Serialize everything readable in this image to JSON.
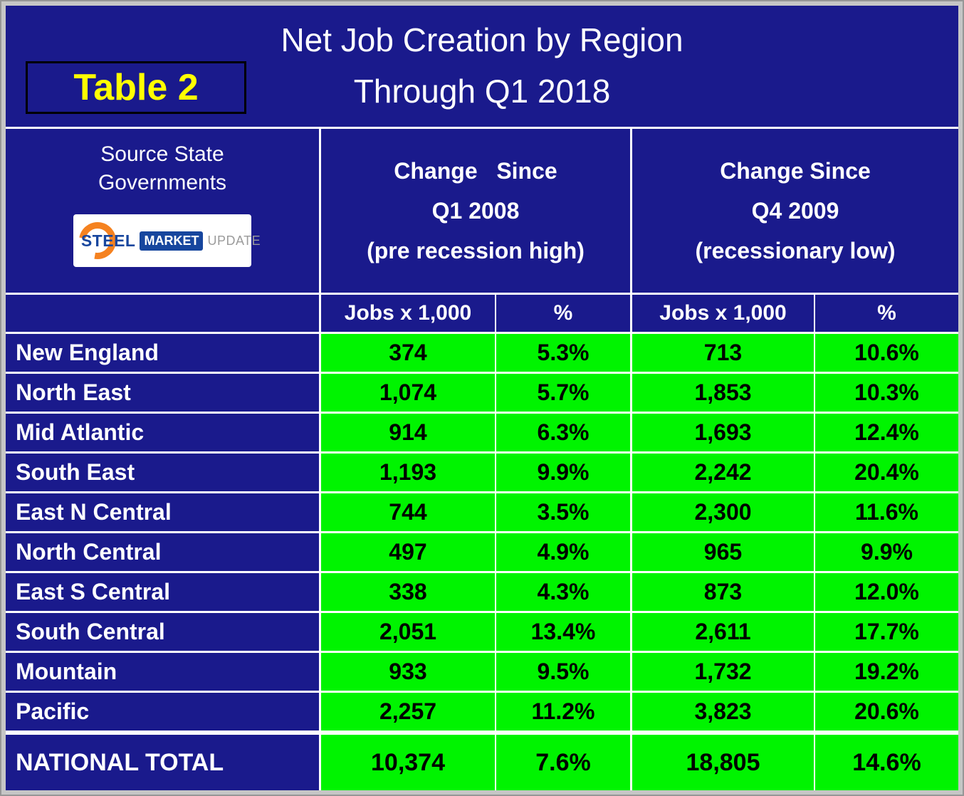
{
  "title": {
    "table_label": "Table 2",
    "text": "Net Job Creation by Region\nThrough Q1 2018"
  },
  "source": {
    "text": "Source State\nGovernments",
    "logo": {
      "steel": "STEEL",
      "market": "MARKET",
      "update": "UPDATE"
    }
  },
  "columns": {
    "group1": "Change   Since\nQ1 2008\n(pre recession high)",
    "group2": "Change Since\nQ4 2009\n(recessionary low)",
    "sub": [
      "Jobs x 1,000",
      "%",
      "Jobs x 1,000",
      "%"
    ]
  },
  "rows": [
    {
      "region": "New England",
      "jobs1": "374",
      "pct1": "5.3%",
      "jobs2": "713",
      "pct2": "10.6%"
    },
    {
      "region": "North East",
      "jobs1": "1,074",
      "pct1": "5.7%",
      "jobs2": "1,853",
      "pct2": "10.3%"
    },
    {
      "region": "Mid Atlantic",
      "jobs1": "914",
      "pct1": "6.3%",
      "jobs2": "1,693",
      "pct2": "12.4%"
    },
    {
      "region": "South East",
      "jobs1": "1,193",
      "pct1": "9.9%",
      "jobs2": "2,242",
      "pct2": "20.4%"
    },
    {
      "region": "East N Central",
      "jobs1": "744",
      "pct1": "3.5%",
      "jobs2": "2,300",
      "pct2": "11.6%"
    },
    {
      "region": "North Central",
      "jobs1": "497",
      "pct1": "4.9%",
      "jobs2": "965",
      "pct2": "9.9%"
    },
    {
      "region": "East S Central",
      "jobs1": "338",
      "pct1": "4.3%",
      "jobs2": "873",
      "pct2": "12.0%"
    },
    {
      "region": "South Central",
      "jobs1": "2,051",
      "pct1": "13.4%",
      "jobs2": "2,611",
      "pct2": "17.7%"
    },
    {
      "region": "Mountain",
      "jobs1": "933",
      "pct1": "9.5%",
      "jobs2": "1,732",
      "pct2": "19.2%"
    },
    {
      "region": "Pacific",
      "jobs1": "2,257",
      "pct1": "11.2%",
      "jobs2": "3,823",
      "pct2": "20.6%"
    }
  ],
  "total": {
    "region": "NATIONAL TOTAL",
    "jobs1": "10,374",
    "pct1": "7.6%",
    "jobs2": "18,805",
    "pct2": "14.6%"
  },
  "colors": {
    "background_navy": "#1a1a8c",
    "cell_green": "#00f400",
    "label_yellow": "#ffff00",
    "grid_white": "#ffffff",
    "logo_orange": "#f58220",
    "logo_blue": "#17469e"
  },
  "chart_data": {
    "type": "table",
    "title": "Net Job Creation by Region Through Q1 2018",
    "source": "Source State Governments (Steel Market Update)",
    "column_groups": [
      "Change Since Q1 2008 (pre recession high)",
      "Change Since Q4 2009 (recessionary low)"
    ],
    "columns": [
      "Region",
      "Jobs x 1,000 (since Q1 2008)",
      "% (since Q1 2008)",
      "Jobs x 1,000 (since Q4 2009)",
      "% (since Q4 2009)"
    ],
    "rows": [
      [
        "New England",
        374,
        5.3,
        713,
        10.6
      ],
      [
        "North East",
        1074,
        5.7,
        1853,
        10.3
      ],
      [
        "Mid Atlantic",
        914,
        6.3,
        1693,
        12.4
      ],
      [
        "South East",
        1193,
        9.9,
        2242,
        20.4
      ],
      [
        "East N Central",
        744,
        3.5,
        2300,
        11.6
      ],
      [
        "North Central",
        497,
        4.9,
        965,
        9.9
      ],
      [
        "East S Central",
        338,
        4.3,
        873,
        12.0
      ],
      [
        "South Central",
        2051,
        13.4,
        2611,
        17.7
      ],
      [
        "Mountain",
        933,
        9.5,
        1732,
        19.2
      ],
      [
        "Pacific",
        2257,
        11.2,
        3823,
        20.6
      ],
      [
        "NATIONAL TOTAL",
        10374,
        7.6,
        18805,
        14.6
      ]
    ]
  }
}
